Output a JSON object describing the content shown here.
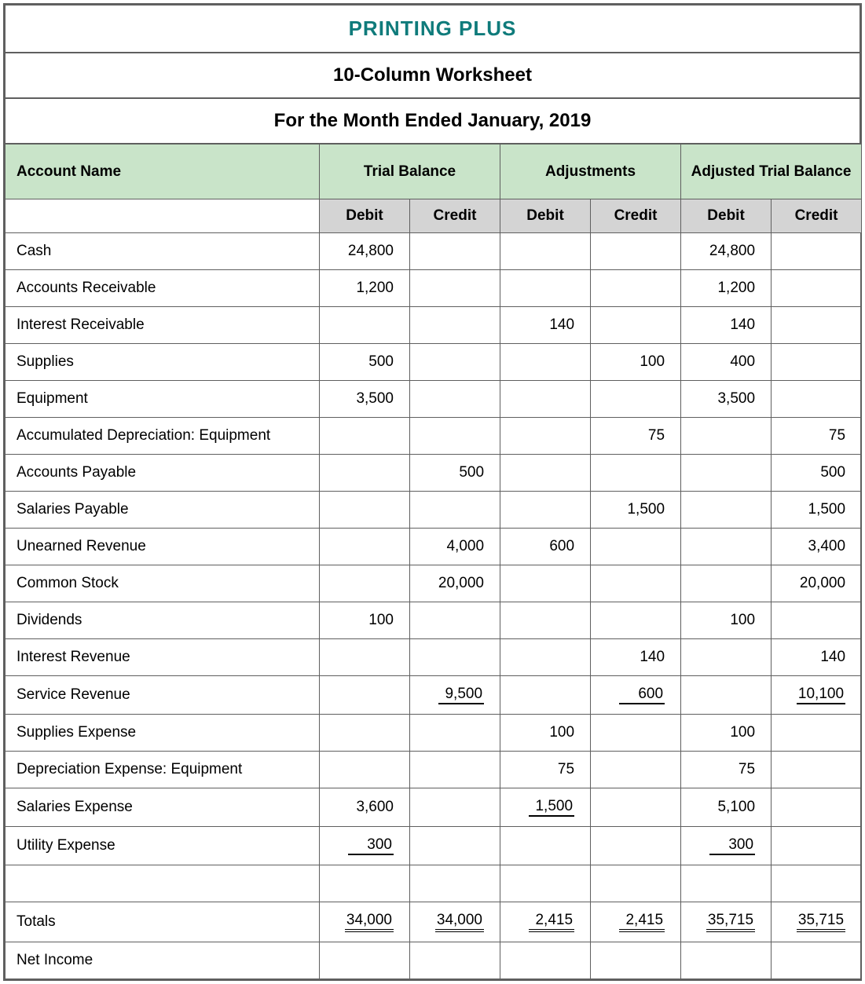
{
  "header": {
    "company": "PRINTING PLUS",
    "subtitle": "10-Column Worksheet",
    "period": "For the Month Ended January, 2019"
  },
  "columns": {
    "account": "Account Name",
    "sections": [
      "Trial Balance",
      "Adjustments",
      "Adjusted Trial Balance"
    ],
    "subs": [
      "Debit",
      "Credit",
      "Debit",
      "Credit",
      "Debit",
      "Credit"
    ]
  },
  "rows": [
    {
      "account": "Cash",
      "cells": [
        "24,800",
        "",
        "",
        "",
        "24,800",
        ""
      ]
    },
    {
      "account": "Accounts Receivable",
      "cells": [
        "1,200",
        "",
        "",
        "",
        "1,200",
        ""
      ]
    },
    {
      "account": "Interest Receivable",
      "cells": [
        "",
        "",
        "140",
        "",
        "140",
        ""
      ]
    },
    {
      "account": "Supplies",
      "cells": [
        "500",
        "",
        "",
        "100",
        "400",
        ""
      ]
    },
    {
      "account": "Equipment",
      "cells": [
        "3,500",
        "",
        "",
        "",
        "3,500",
        ""
      ]
    },
    {
      "account": "Accumulated Depreciation: Equipment",
      "cells": [
        "",
        "",
        "",
        "75",
        "",
        "75"
      ]
    },
    {
      "account": "Accounts Payable",
      "cells": [
        "",
        "500",
        "",
        "",
        "",
        "500"
      ]
    },
    {
      "account": "Salaries Payable",
      "cells": [
        "",
        "",
        "",
        "1,500",
        "",
        "1,500"
      ]
    },
    {
      "account": "Unearned Revenue",
      "cells": [
        "",
        "4,000",
        "600",
        "",
        "",
        "3,400"
      ]
    },
    {
      "account": "Common Stock",
      "cells": [
        "",
        "20,000",
        "",
        "",
        "",
        "20,000"
      ]
    },
    {
      "account": "Dividends",
      "cells": [
        "100",
        "",
        "",
        "",
        "100",
        ""
      ]
    },
    {
      "account": "Interest Revenue",
      "cells": [
        "",
        "",
        "",
        "140",
        "",
        "140"
      ]
    },
    {
      "account": "Service Revenue",
      "cells": [
        "",
        "9,500",
        "",
        "600",
        "",
        "10,100"
      ],
      "underline": [
        false,
        true,
        false,
        true,
        false,
        true
      ]
    },
    {
      "account": "Supplies Expense",
      "cells": [
        "",
        "",
        "100",
        "",
        "100",
        ""
      ]
    },
    {
      "account": "Depreciation Expense: Equipment",
      "cells": [
        "",
        "",
        "75",
        "",
        "75",
        ""
      ]
    },
    {
      "account": "Salaries Expense",
      "cells": [
        "3,600",
        "",
        "1,500",
        "",
        "5,100",
        ""
      ],
      "underline": [
        false,
        false,
        true,
        false,
        false,
        false
      ]
    },
    {
      "account": "Utility Expense",
      "cells": [
        "300",
        "",
        "",
        "",
        "300",
        ""
      ],
      "underline": [
        true,
        false,
        false,
        false,
        true,
        false
      ]
    },
    {
      "account": "",
      "cells": [
        "",
        "",
        "",
        "",
        "",
        ""
      ]
    },
    {
      "account": "Totals",
      "cells": [
        "34,000",
        "34,000",
        "2,415",
        "2,415",
        "35,715",
        "35,715"
      ],
      "double": [
        true,
        true,
        true,
        true,
        true,
        true
      ]
    },
    {
      "account": "Net Income",
      "cells": [
        "",
        "",
        "",
        "",
        "",
        ""
      ]
    }
  ],
  "style": {
    "header_bg": "#c9e4c9",
    "sub_bg": "#d4d4d4",
    "border_color": "#5f5f5f",
    "company_color": "#0f7b7b",
    "font_family": "Arial",
    "title_fontsize": 26,
    "subtitle_fontsize": 24,
    "cell_fontsize": 19
  }
}
